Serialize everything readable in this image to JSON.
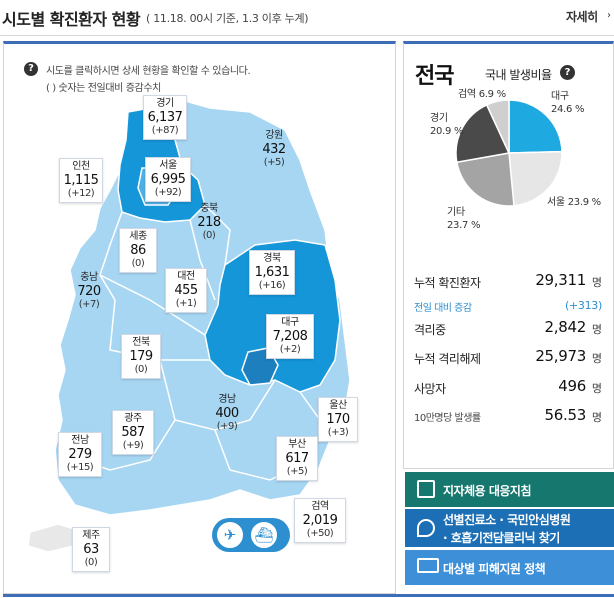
{
  "header": {
    "title": "시도별 확진환자 현황",
    "subtitle": "( 11.18. 00시 기준, 1.3 이후 누계)",
    "detail_label": "자세히",
    "detail_arrow": "›"
  },
  "help": {
    "icon": "?",
    "line1": "시도를 클릭하시면 상세 현황을 확인할 수 있습니다.",
    "line2": "( ) 숫자는 전일대비 증감수치"
  },
  "regions": [
    {
      "name": "경기",
      "count": "6,137",
      "delta": "(+87)"
    },
    {
      "name": "강원",
      "count": "432",
      "delta": "(+5)"
    },
    {
      "name": "인천",
      "count": "1,115",
      "delta": "(+12)"
    },
    {
      "name": "서울",
      "count": "6,995",
      "delta": "(+92)"
    },
    {
      "name": "충북",
      "count": "218",
      "delta": "(0)"
    },
    {
      "name": "세종",
      "count": "86",
      "delta": "(0)"
    },
    {
      "name": "충남",
      "count": "720",
      "delta": "(+7)"
    },
    {
      "name": "대전",
      "count": "455",
      "delta": "(+1)"
    },
    {
      "name": "경북",
      "count": "1,631",
      "delta": "(+16)"
    },
    {
      "name": "대구",
      "count": "7,208",
      "delta": "(+2)"
    },
    {
      "name": "전북",
      "count": "179",
      "delta": "(0)"
    },
    {
      "name": "광주",
      "count": "587",
      "delta": "(+9)"
    },
    {
      "name": "경남",
      "count": "400",
      "delta": "(+9)"
    },
    {
      "name": "울산",
      "count": "170",
      "delta": "(+3)"
    },
    {
      "name": "전남",
      "count": "279",
      "delta": "(+15)"
    },
    {
      "name": "부산",
      "count": "617",
      "delta": "(+5)"
    },
    {
      "name": "검역",
      "count": "2,019",
      "delta": "(+50)"
    },
    {
      "name": "제주",
      "count": "63",
      "delta": "(0)"
    }
  ],
  "transport_icons": [
    "airplane-icon",
    "ship-icon"
  ],
  "national": {
    "title": "전국",
    "ratio_title": "국내 발생비율",
    "ratio_help": "?",
    "pie": [
      {
        "name": "대구",
        "percent": "24.6 %",
        "value": 24.6,
        "color": "#1fa9e1"
      },
      {
        "name": "서울",
        "percent": "23.9 %",
        "value": 23.9,
        "color": "#e6e6e6"
      },
      {
        "name": "기타",
        "percent": "23.7 %",
        "value": 23.7,
        "color": "#a4a4a4"
      },
      {
        "name": "경기",
        "percent": "20.9 %",
        "value": 20.9,
        "color": "#4a4a4a"
      },
      {
        "name": "검역",
        "percent": "6.9 %",
        "value": 6.9,
        "color": "#cfcfcf"
      }
    ],
    "stats": [
      {
        "label": "누적 확진환자",
        "value": "29,311",
        "unit": "명"
      },
      {
        "label": "전일 대비 증감",
        "value": "(+313)",
        "unit": ""
      },
      {
        "label": "격리중",
        "value": "2,842",
        "unit": "명"
      },
      {
        "label": "누적 격리해제",
        "value": "25,973",
        "unit": "명"
      },
      {
        "label": "사망자",
        "value": "496",
        "unit": "명"
      },
      {
        "label": "10만명당 발생률",
        "value": "56.53",
        "unit": "명"
      }
    ]
  },
  "menu": [
    {
      "label": "지자체용 대응지침",
      "color": "#15776d",
      "icon": "checklist-icon"
    },
    {
      "label": "선별진료소 · 국민안심병원",
      "label2": "· 호흡기전담클리닉 찾기",
      "color": "#1d6fb5",
      "icon": "map-pin-icon"
    },
    {
      "label": "대상별 피해지원 정책",
      "color": "#3d8fd8",
      "icon": "folder-icon"
    }
  ],
  "colors": {
    "accent": "#3c6db5",
    "map_light": "#a7d6f3",
    "map_mid": "#4fb0e6",
    "map_dark": "#1496d8"
  }
}
